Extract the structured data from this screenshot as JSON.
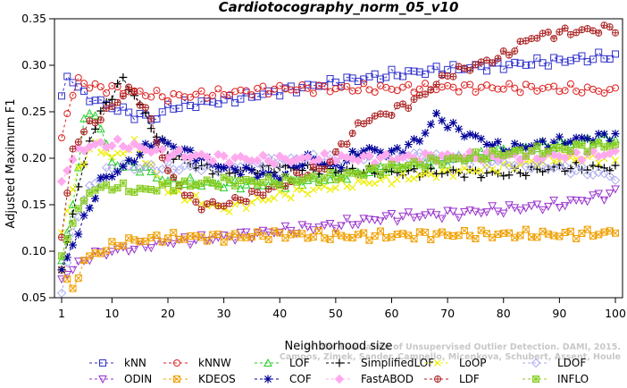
{
  "chart_data": {
    "type": "line",
    "title": "Cardiotocography_norm_05_v10",
    "xlabel": "Neighborhood size",
    "ylabel": "Adjusted Maximum F1",
    "xlim": [
      1,
      100
    ],
    "ylim": [
      0.05,
      0.35
    ],
    "x_ticks": [
      1,
      10,
      20,
      30,
      40,
      50,
      60,
      70,
      80,
      90,
      100
    ],
    "y_ticks": [
      0.05,
      0.1,
      0.15,
      0.2,
      0.25,
      0.3,
      0.35
    ],
    "y_tick_labels": [
      "0.05",
      "0.10",
      "0.15",
      "0.20",
      "0.25",
      "0.30",
      "0.35"
    ],
    "grid": false,
    "legend_position": "bottom",
    "watermark": "Campos, Zimek, Sander, Campello, Micenkova, Schubert, Assent, Houle: On the Evaluation of Unsupervised Outlier Detection. DAMI, 2015.",
    "watermark_line1": "On the Evaluation of Unsupervised Outlier Detection. DAMI, 2015.",
    "watermark_line2": "Campos, Zimek, Sander, Campello, Micenkova, Schubert, Assent, Houle",
    "series": [
      {
        "name": "kNN",
        "color": "#3333cc",
        "marker": "square",
        "anchors": [
          [
            1,
            0.267
          ],
          [
            2,
            0.288
          ],
          [
            5,
            0.268
          ],
          [
            10,
            0.255
          ],
          [
            15,
            0.245
          ],
          [
            18,
            0.243
          ],
          [
            20,
            0.255
          ],
          [
            30,
            0.262
          ],
          [
            40,
            0.272
          ],
          [
            50,
            0.282
          ],
          [
            60,
            0.29
          ],
          [
            70,
            0.296
          ],
          [
            80,
            0.3
          ],
          [
            90,
            0.305
          ],
          [
            100,
            0.31
          ]
        ]
      },
      {
        "name": "kNNW",
        "color": "#dd2222",
        "marker": "circle",
        "anchors": [
          [
            1,
            0.222
          ],
          [
            2,
            0.248
          ],
          [
            4,
            0.287
          ],
          [
            6,
            0.277
          ],
          [
            10,
            0.275
          ],
          [
            13,
            0.272
          ],
          [
            20,
            0.266
          ],
          [
            30,
            0.27
          ],
          [
            40,
            0.275
          ],
          [
            50,
            0.275
          ],
          [
            60,
            0.275
          ],
          [
            70,
            0.276
          ],
          [
            80,
            0.276
          ],
          [
            90,
            0.275
          ],
          [
            100,
            0.272
          ]
        ]
      },
      {
        "name": "LOF",
        "color": "#22cc22",
        "marker": "triangle-up",
        "anchors": [
          [
            1,
            0.09
          ],
          [
            3,
            0.15
          ],
          [
            5,
            0.24
          ],
          [
            7,
            0.25
          ],
          [
            10,
            0.195
          ],
          [
            15,
            0.19
          ],
          [
            20,
            0.175
          ],
          [
            30,
            0.172
          ],
          [
            40,
            0.172
          ],
          [
            50,
            0.18
          ],
          [
            60,
            0.19
          ],
          [
            70,
            0.198
          ],
          [
            80,
            0.208
          ],
          [
            90,
            0.215
          ],
          [
            100,
            0.222
          ]
        ]
      },
      {
        "name": "SimplifiedLOF",
        "color": "#000000",
        "marker": "plus",
        "anchors": [
          [
            1,
            0.08
          ],
          [
            3,
            0.14
          ],
          [
            6,
            0.22
          ],
          [
            9,
            0.26
          ],
          [
            12,
            0.285
          ],
          [
            14,
            0.268
          ],
          [
            17,
            0.235
          ],
          [
            20,
            0.205
          ],
          [
            25,
            0.192
          ],
          [
            30,
            0.185
          ],
          [
            40,
            0.19
          ],
          [
            50,
            0.187
          ],
          [
            60,
            0.185
          ],
          [
            70,
            0.185
          ],
          [
            80,
            0.183
          ],
          [
            90,
            0.19
          ],
          [
            100,
            0.19
          ]
        ]
      },
      {
        "name": "LoOP",
        "color": "#eeee00",
        "marker": "x",
        "anchors": [
          [
            1,
            0.12
          ],
          [
            4,
            0.19
          ],
          [
            7,
            0.215
          ],
          [
            10,
            0.2
          ],
          [
            14,
            0.215
          ],
          [
            20,
            0.165
          ],
          [
            30,
            0.145
          ],
          [
            40,
            0.16
          ],
          [
            50,
            0.17
          ],
          [
            60,
            0.177
          ],
          [
            70,
            0.185
          ],
          [
            80,
            0.19
          ],
          [
            90,
            0.2
          ],
          [
            100,
            0.2
          ]
        ]
      },
      {
        "name": "LDOF",
        "color": "#aaaaee",
        "marker": "diamond",
        "anchors": [
          [
            1,
            0.055
          ],
          [
            3,
            0.12
          ],
          [
            6,
            0.17
          ],
          [
            10,
            0.19
          ],
          [
            20,
            0.19
          ],
          [
            30,
            0.19
          ],
          [
            40,
            0.198
          ],
          [
            50,
            0.2
          ],
          [
            60,
            0.205
          ],
          [
            70,
            0.2
          ],
          [
            80,
            0.195
          ],
          [
            90,
            0.19
          ],
          [
            100,
            0.18
          ]
        ]
      },
      {
        "name": "ODIN",
        "color": "#9933cc",
        "marker": "triangle-down",
        "anchors": [
          [
            1,
            0.07
          ],
          [
            3,
            0.08
          ],
          [
            6,
            0.095
          ],
          [
            10,
            0.1
          ],
          [
            20,
            0.11
          ],
          [
            30,
            0.115
          ],
          [
            40,
            0.122
          ],
          [
            50,
            0.128
          ],
          [
            60,
            0.137
          ],
          [
            70,
            0.14
          ],
          [
            80,
            0.145
          ],
          [
            90,
            0.15
          ],
          [
            100,
            0.163
          ]
        ]
      },
      {
        "name": "KDEOS",
        "color": "#f0a000",
        "marker": "square-x",
        "anchors": [
          [
            1,
            0.08
          ],
          [
            3,
            0.06
          ],
          [
            5,
            0.09
          ],
          [
            8,
            0.1
          ],
          [
            12,
            0.11
          ],
          [
            20,
            0.115
          ],
          [
            30,
            0.115
          ],
          [
            40,
            0.118
          ],
          [
            50,
            0.116
          ],
          [
            60,
            0.117
          ],
          [
            70,
            0.118
          ],
          [
            80,
            0.118
          ],
          [
            90,
            0.118
          ],
          [
            100,
            0.12
          ]
        ]
      },
      {
        "name": "COF",
        "color": "#000099",
        "marker": "asterisk",
        "anchors": [
          [
            1,
            0.08
          ],
          [
            4,
            0.12
          ],
          [
            8,
            0.175
          ],
          [
            12,
            0.19
          ],
          [
            18,
            0.22
          ],
          [
            22,
            0.21
          ],
          [
            30,
            0.19
          ],
          [
            40,
            0.18
          ],
          [
            45,
            0.2
          ],
          [
            50,
            0.19
          ],
          [
            55,
            0.21
          ],
          [
            60,
            0.205
          ],
          [
            65,
            0.22
          ],
          [
            68,
            0.245
          ],
          [
            72,
            0.23
          ],
          [
            80,
            0.21
          ],
          [
            90,
            0.218
          ],
          [
            100,
            0.225
          ]
        ]
      },
      {
        "name": "FastABOD",
        "color": "#ffaaee",
        "marker": "diamond-filled",
        "anchors": [
          [
            1,
            0.175
          ],
          [
            4,
            0.21
          ],
          [
            8,
            0.215
          ],
          [
            12,
            0.215
          ],
          [
            20,
            0.205
          ],
          [
            30,
            0.2
          ],
          [
            40,
            0.198
          ],
          [
            50,
            0.2
          ],
          [
            60,
            0.2
          ],
          [
            70,
            0.202
          ],
          [
            80,
            0.202
          ],
          [
            90,
            0.203
          ],
          [
            100,
            0.205
          ]
        ]
      },
      {
        "name": "LDF",
        "color": "#aa2222",
        "marker": "circle-plus",
        "anchors": [
          [
            1,
            0.115
          ],
          [
            3,
            0.21
          ],
          [
            5,
            0.23
          ],
          [
            10,
            0.255
          ],
          [
            13,
            0.275
          ],
          [
            16,
            0.255
          ],
          [
            20,
            0.185
          ],
          [
            25,
            0.15
          ],
          [
            30,
            0.15
          ],
          [
            35,
            0.16
          ],
          [
            40,
            0.17
          ],
          [
            45,
            0.185
          ],
          [
            48,
            0.19
          ],
          [
            52,
            0.22
          ],
          [
            55,
            0.24
          ],
          [
            60,
            0.25
          ],
          [
            65,
            0.265
          ],
          [
            70,
            0.29
          ],
          [
            75,
            0.3
          ],
          [
            80,
            0.31
          ],
          [
            85,
            0.33
          ],
          [
            90,
            0.335
          ],
          [
            100,
            0.34
          ]
        ]
      },
      {
        "name": "INFLO",
        "color": "#88cc22",
        "marker": "square-cross",
        "anchors": [
          [
            1,
            0.095
          ],
          [
            3,
            0.13
          ],
          [
            6,
            0.165
          ],
          [
            10,
            0.17
          ],
          [
            15,
            0.165
          ],
          [
            20,
            0.17
          ],
          [
            30,
            0.175
          ],
          [
            40,
            0.175
          ],
          [
            50,
            0.18
          ],
          [
            60,
            0.19
          ],
          [
            70,
            0.198
          ],
          [
            80,
            0.205
          ],
          [
            90,
            0.21
          ],
          [
            100,
            0.215
          ]
        ]
      }
    ]
  }
}
